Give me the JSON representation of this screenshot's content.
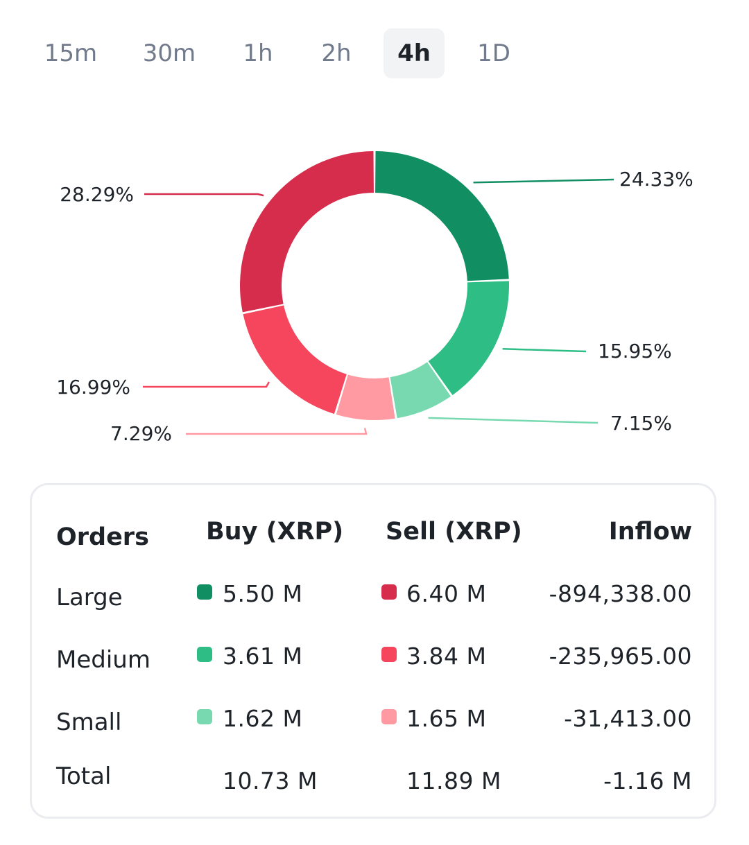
{
  "tabs": {
    "items": [
      "15m",
      "30m",
      "1h",
      "2h",
      "4h",
      "1D"
    ],
    "active": "4h"
  },
  "chart_data": {
    "type": "pie",
    "style": "donut",
    "slices": [
      {
        "name": "Buy Large",
        "value": 24.33,
        "label": "24.33%",
        "color": "#118f62"
      },
      {
        "name": "Buy Medium",
        "value": 15.95,
        "label": "15.95%",
        "color": "#2ebd85"
      },
      {
        "name": "Buy Small",
        "value": 7.15,
        "label": "7.15%",
        "color": "#78d9b0"
      },
      {
        "name": "Sell Small",
        "value": 7.29,
        "label": "7.29%",
        "color": "#ff9aa2"
      },
      {
        "name": "Sell Medium",
        "value": 16.99,
        "label": "16.99%",
        "color": "#f6465d"
      },
      {
        "name": "Sell Large",
        "value": 28.29,
        "label": "28.29%",
        "color": "#d72d4d"
      }
    ]
  },
  "table": {
    "headers": {
      "orders": "Orders",
      "buy": "Buy (XRP)",
      "sell": "Sell (XRP)",
      "inflow": "Inflow"
    },
    "rows": [
      {
        "label": "Large",
        "buy": "5.50 M",
        "sell": "6.40 M",
        "inflow": "-894,338.00"
      },
      {
        "label": "Medium",
        "buy": "3.61 M",
        "sell": "3.84 M",
        "inflow": "-235,965.00"
      },
      {
        "label": "Small",
        "buy": "1.62 M",
        "sell": "1.65 M",
        "inflow": "-31,413.00"
      }
    ],
    "total": {
      "label": "Total",
      "buy": "10.73 M",
      "sell": "11.89 M",
      "inflow": "-1.16 M"
    },
    "colors": {
      "buy_large": "#118f62",
      "buy_medium": "#2ebd85",
      "buy_small": "#78d9b0",
      "sell_large": "#d72d4d",
      "sell_medium": "#f6465d",
      "sell_small": "#ff9aa2"
    }
  }
}
